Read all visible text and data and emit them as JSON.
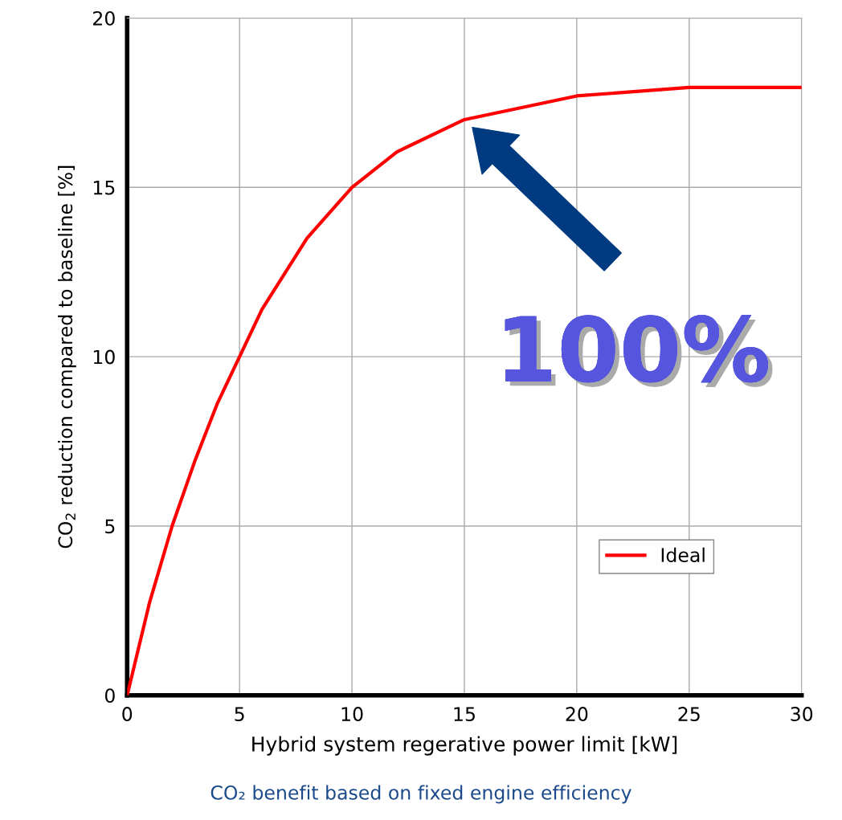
{
  "chart_data": {
    "type": "line",
    "xlabel": "Hybrid system regerative power limit [kW]",
    "ylabel": "CO$_{2}$ reduction compared to baseline [%]",
    "x": [
      0,
      1,
      2,
      3,
      4,
      5,
      6,
      8,
      10,
      12,
      15,
      20,
      25,
      30
    ],
    "series": [
      {
        "name": "Ideal",
        "color": "#ff0000",
        "values": [
          0,
          2.75,
          5.0,
          6.9,
          8.6,
          10.0,
          11.4,
          13.5,
          15.0,
          16.05,
          17.0,
          17.7,
          17.95,
          17.95
        ]
      }
    ],
    "xlim": [
      0,
      30
    ],
    "xticks": [
      0,
      5,
      10,
      15,
      20,
      25,
      30
    ],
    "ylim": [
      0,
      20
    ],
    "yticks": [
      0,
      5,
      10,
      15,
      20
    ],
    "grid": true,
    "legend": "bottom right",
    "marker": "none",
    "line_style": "solid",
    "annotations": [
      {
        "text": "100%",
        "x": 15,
        "y": 17
      },
      "CO₂ benefit based on fixed engine efficiency"
    ]
  }
}
